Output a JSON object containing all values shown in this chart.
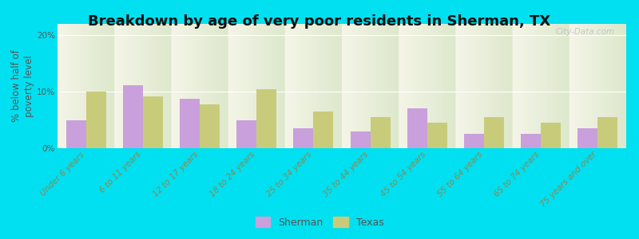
{
  "title": "Breakdown by age of very poor residents in Sherman, TX",
  "ylabel": "% below half of\npoverty level",
  "categories": [
    "Under 6 years",
    "6 to 11 years",
    "12 to 17 years",
    "18 to 24 years",
    "25 to 34 years",
    "35 to 44 years",
    "45 to 54 years",
    "55 to 64 years",
    "65 to 74 years",
    "75 years and over"
  ],
  "sherman_values": [
    5.0,
    11.2,
    8.7,
    5.0,
    3.5,
    3.0,
    7.0,
    2.5,
    2.5,
    3.5
  ],
  "texas_values": [
    10.0,
    9.2,
    7.8,
    10.5,
    6.5,
    5.5,
    4.5,
    5.5,
    4.5,
    5.5
  ],
  "sherman_color": "#c9a0dc",
  "texas_color": "#c8cc7a",
  "background_outer": "#00e0f0",
  "background_plot_top": "#f5f5e8",
  "background_plot_bottom": "#dde8cc",
  "ylim": [
    0,
    22
  ],
  "yticks": [
    0,
    10,
    20
  ],
  "ytick_labels": [
    "0%",
    "10%",
    "20%"
  ],
  "bar_width": 0.35,
  "title_fontsize": 13,
  "axis_label_fontsize": 8.5,
  "tick_fontsize": 7.5,
  "legend_labels": [
    "Sherman",
    "Texas"
  ],
  "watermark": "City-Data.com"
}
